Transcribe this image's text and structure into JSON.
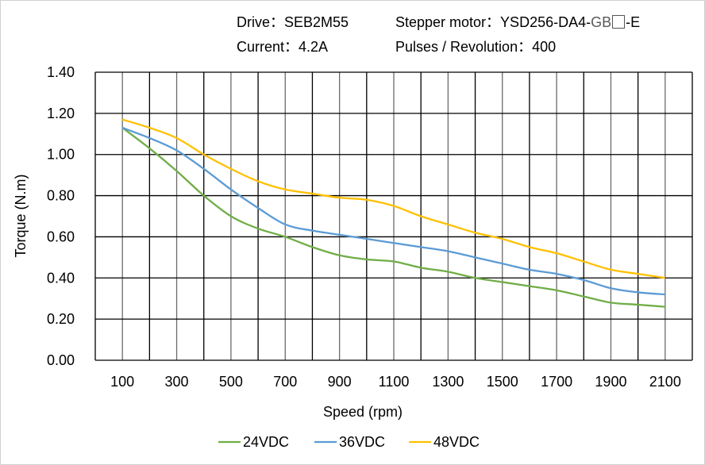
{
  "header": {
    "drive": "Drive：SEB2M55",
    "motor_prefix": "Stepper motor：YSD256-DA4-",
    "motor_gb": "GB",
    "motor_suffix": "-E",
    "current": "Current：4.2A",
    "pulses": "Pulses / Revolution：400"
  },
  "chart_data": {
    "type": "line",
    "title": "",
    "xlabel": "Speed  (rpm)",
    "ylabel": "Torque (N.m)",
    "xlim": [
      0,
      2200
    ],
    "ylim": [
      0,
      1.4
    ],
    "x_ticks": [
      "100",
      "300",
      "500",
      "700",
      "900",
      "1100",
      "1300",
      "1500",
      "1700",
      "1900",
      "2100"
    ],
    "y_ticks": [
      "0.00",
      "0.20",
      "0.40",
      "0.60",
      "0.80",
      "1.00",
      "1.20",
      "1.40"
    ],
    "grid": true,
    "legend_position": "bottom",
    "x": [
      100,
      200,
      300,
      400,
      500,
      600,
      700,
      800,
      900,
      1000,
      1100,
      1200,
      1300,
      1400,
      1500,
      1600,
      1700,
      1800,
      1900,
      2000,
      2100
    ],
    "series": [
      {
        "name": "24VDC",
        "color": "#70ad47",
        "values": [
          1.13,
          1.03,
          0.92,
          0.8,
          0.7,
          0.64,
          0.6,
          0.55,
          0.51,
          0.49,
          0.48,
          0.45,
          0.43,
          0.4,
          0.38,
          0.36,
          0.34,
          0.31,
          0.28,
          0.27,
          0.26
        ]
      },
      {
        "name": "36VDC",
        "color": "#5b9bd5",
        "values": [
          1.13,
          1.08,
          1.02,
          0.93,
          0.83,
          0.74,
          0.66,
          0.63,
          0.61,
          0.59,
          0.57,
          0.55,
          0.53,
          0.5,
          0.47,
          0.44,
          0.42,
          0.39,
          0.35,
          0.33,
          0.32
        ]
      },
      {
        "name": "48VDC",
        "color": "#ffc000",
        "values": [
          1.17,
          1.13,
          1.08,
          1.0,
          0.93,
          0.87,
          0.83,
          0.81,
          0.79,
          0.78,
          0.75,
          0.7,
          0.66,
          0.62,
          0.59,
          0.55,
          0.52,
          0.48,
          0.44,
          0.42,
          0.4
        ]
      }
    ]
  }
}
